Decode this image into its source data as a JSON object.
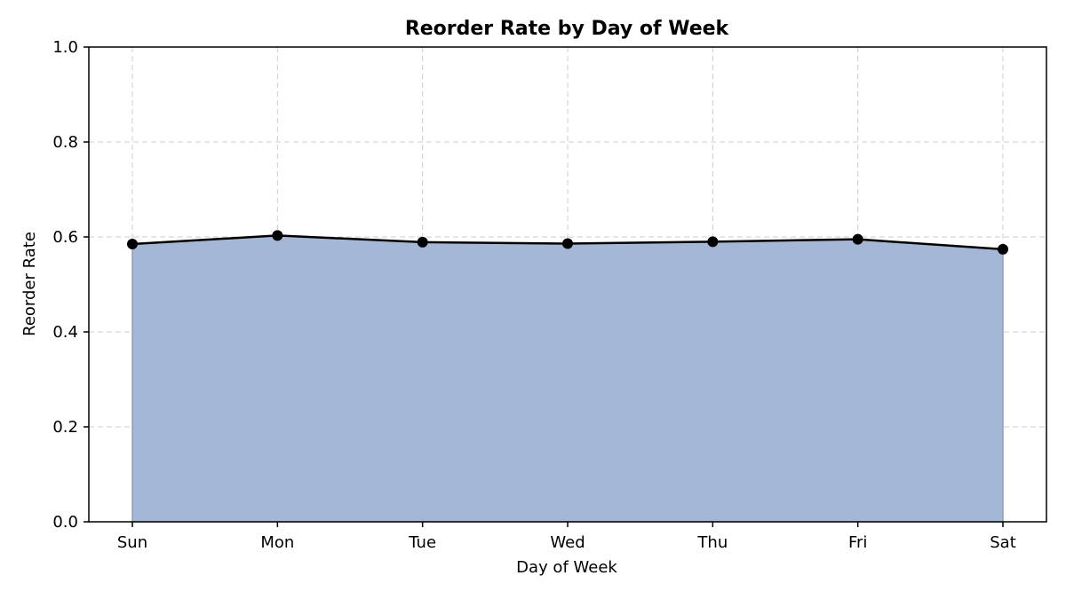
{
  "chart_data": {
    "type": "area",
    "title": "Reorder Rate by Day of Week",
    "xlabel": "Day of Week",
    "ylabel": "Reorder Rate",
    "categories": [
      "Sun",
      "Mon",
      "Tue",
      "Wed",
      "Thu",
      "Fri",
      "Sat"
    ],
    "values": [
      0.585,
      0.603,
      0.589,
      0.586,
      0.59,
      0.595,
      0.574
    ],
    "ylim": [
      0,
      1.0
    ],
    "yticks": [
      "0.0",
      "0.2",
      "0.4",
      "0.6",
      "0.8",
      "1.0"
    ],
    "grid": true,
    "legend": "none",
    "colors": {
      "fill": "#a5b7d7",
      "fill_edge": "#8f9fbd",
      "line": "#000000",
      "marker": "#000000"
    }
  }
}
